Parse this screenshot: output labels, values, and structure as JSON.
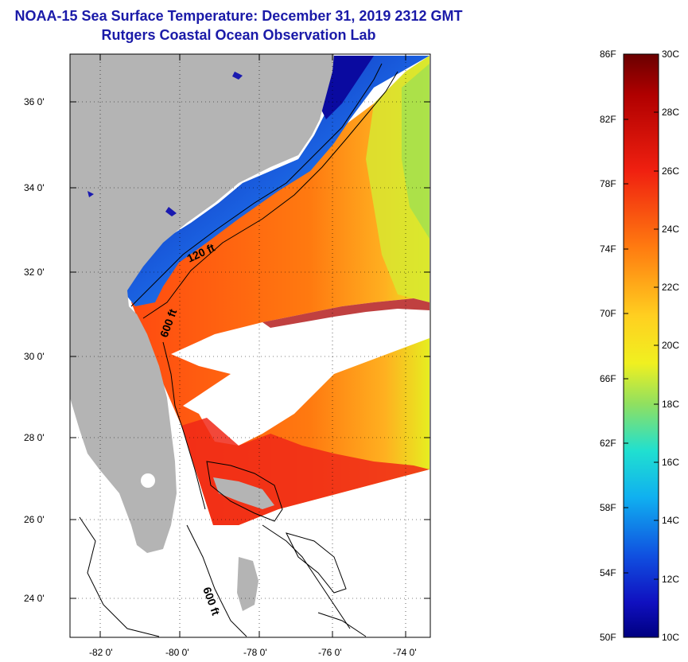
{
  "header": {
    "title": "NOAA-15 Sea Surface Temperature:  December 31, 2019 2312 GMT",
    "subtitle": "Rutgers Coastal Ocean Observation Lab"
  },
  "map": {
    "lat_labels": [
      "36 0'",
      "34 0'",
      "32 0'",
      "30 0'",
      "28 0'",
      "26 0'",
      "24 0'"
    ],
    "lon_labels": [
      "-82 0'",
      "-80 0'",
      "-78 0'",
      "-76 0'",
      "-74 0'"
    ],
    "contour_labels": [
      "120 ft",
      "600 ft",
      "600 ft"
    ]
  },
  "colorbar": {
    "fahrenheit_labels": [
      "86F",
      "82F",
      "78F",
      "74F",
      "70F",
      "66F",
      "62F",
      "58F",
      "54F",
      "50F"
    ],
    "celsius_labels": [
      "30C",
      "28C",
      "26C",
      "24C",
      "22C",
      "20C",
      "18C",
      "16C",
      "14C",
      "12C",
      "10C"
    ]
  },
  "colors": {
    "title": "#1a1aa8",
    "land": "#b4b4b4",
    "warm": "#e8301a",
    "cold": "#0a1aa0"
  }
}
